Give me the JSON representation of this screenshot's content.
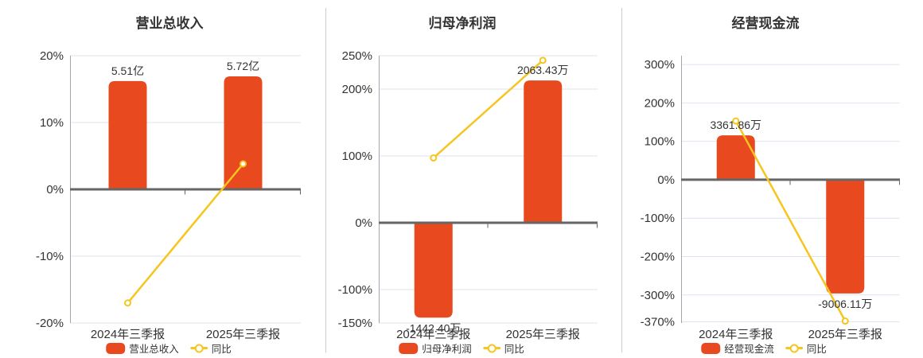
{
  "styles": {
    "background": "#ffffff",
    "bar_color": "#E8491F",
    "line_color": "#F6C51F",
    "marker_fill": "#ffffff",
    "grid_color": "#DEE4EF",
    "zero_line_color": "#666666",
    "axis_line_color": "#A0A6B0",
    "text_color": "#333333",
    "divider_color": "#CCCCCC"
  },
  "chart_data": [
    {
      "type": "bar+line",
      "title": "营业总收入",
      "categories": [
        "2024年三季报",
        "2025年三季报"
      ],
      "legend_position": "bottom",
      "grid": true,
      "ylabel": "",
      "ylim": [
        -20,
        20
      ],
      "yticks": [
        {
          "label": "20%",
          "value": 20
        },
        {
          "label": "10%",
          "value": 10
        },
        {
          "label": "0%",
          "value": 0
        },
        {
          "label": "-10%",
          "value": -10
        },
        {
          "label": "-20%",
          "value": -20
        }
      ],
      "bar_series": {
        "name": "营业总收入",
        "unit": "亿",
        "values": [
          5.51,
          5.72
        ],
        "display_values": [
          "5.51亿",
          "5.72亿"
        ],
        "plot_pct": [
          16.2,
          16.9
        ]
      },
      "line_series": {
        "name": "同比",
        "unit": "%",
        "values_pct": [
          -17.0,
          3.81
        ]
      }
    },
    {
      "type": "bar+line",
      "title": "归母净利润",
      "categories": [
        "2024年三季报",
        "2025年三季报"
      ],
      "legend_position": "bottom",
      "grid": true,
      "ylabel": "",
      "ylim": [
        -150,
        250
      ],
      "yticks": [
        {
          "label": "250%",
          "value": 250
        },
        {
          "label": "200%",
          "value": 200
        },
        {
          "label": "100%",
          "value": 100
        },
        {
          "label": "0%",
          "value": 0
        },
        {
          "label": "-100%",
          "value": -100
        },
        {
          "label": "-150%",
          "value": -150
        }
      ],
      "bar_series": {
        "name": "归母净利润",
        "unit": "万",
        "values": [
          -1442.4,
          2063.43
        ],
        "display_values": [
          "-1442.40万",
          "2063.43万"
        ],
        "plot_pct": [
          -142,
          213
        ]
      },
      "line_series": {
        "name": "同比",
        "unit": "%",
        "values_pct": [
          97,
          243.06
        ]
      }
    },
    {
      "type": "bar+line",
      "title": "经营现金流",
      "categories": [
        "2024年三季报",
        "2025年三季报"
      ],
      "legend_position": "bottom",
      "grid": true,
      "ylabel": "",
      "ylim": [
        -373,
        323
      ],
      "yticks": [
        {
          "label": "300%",
          "value": 300
        },
        {
          "label": "200%",
          "value": 200
        },
        {
          "label": "100%",
          "value": 100
        },
        {
          "label": "0%",
          "value": 0
        },
        {
          "label": "-100%",
          "value": -100
        },
        {
          "label": "-200%",
          "value": -200
        },
        {
          "label": "-300%",
          "value": -300
        },
        {
          "label": "-370%",
          "value": -370
        }
      ],
      "bar_series": {
        "name": "经营现金流",
        "unit": "万",
        "values": [
          3361.86,
          -9006.11
        ],
        "display_values": [
          "3361.86万",
          "-9006.11万"
        ],
        "plot_pct": [
          115.5,
          -296
        ]
      },
      "line_series": {
        "name": "同比",
        "unit": "%",
        "values_pct": [
          153,
          -367.89
        ]
      }
    }
  ]
}
